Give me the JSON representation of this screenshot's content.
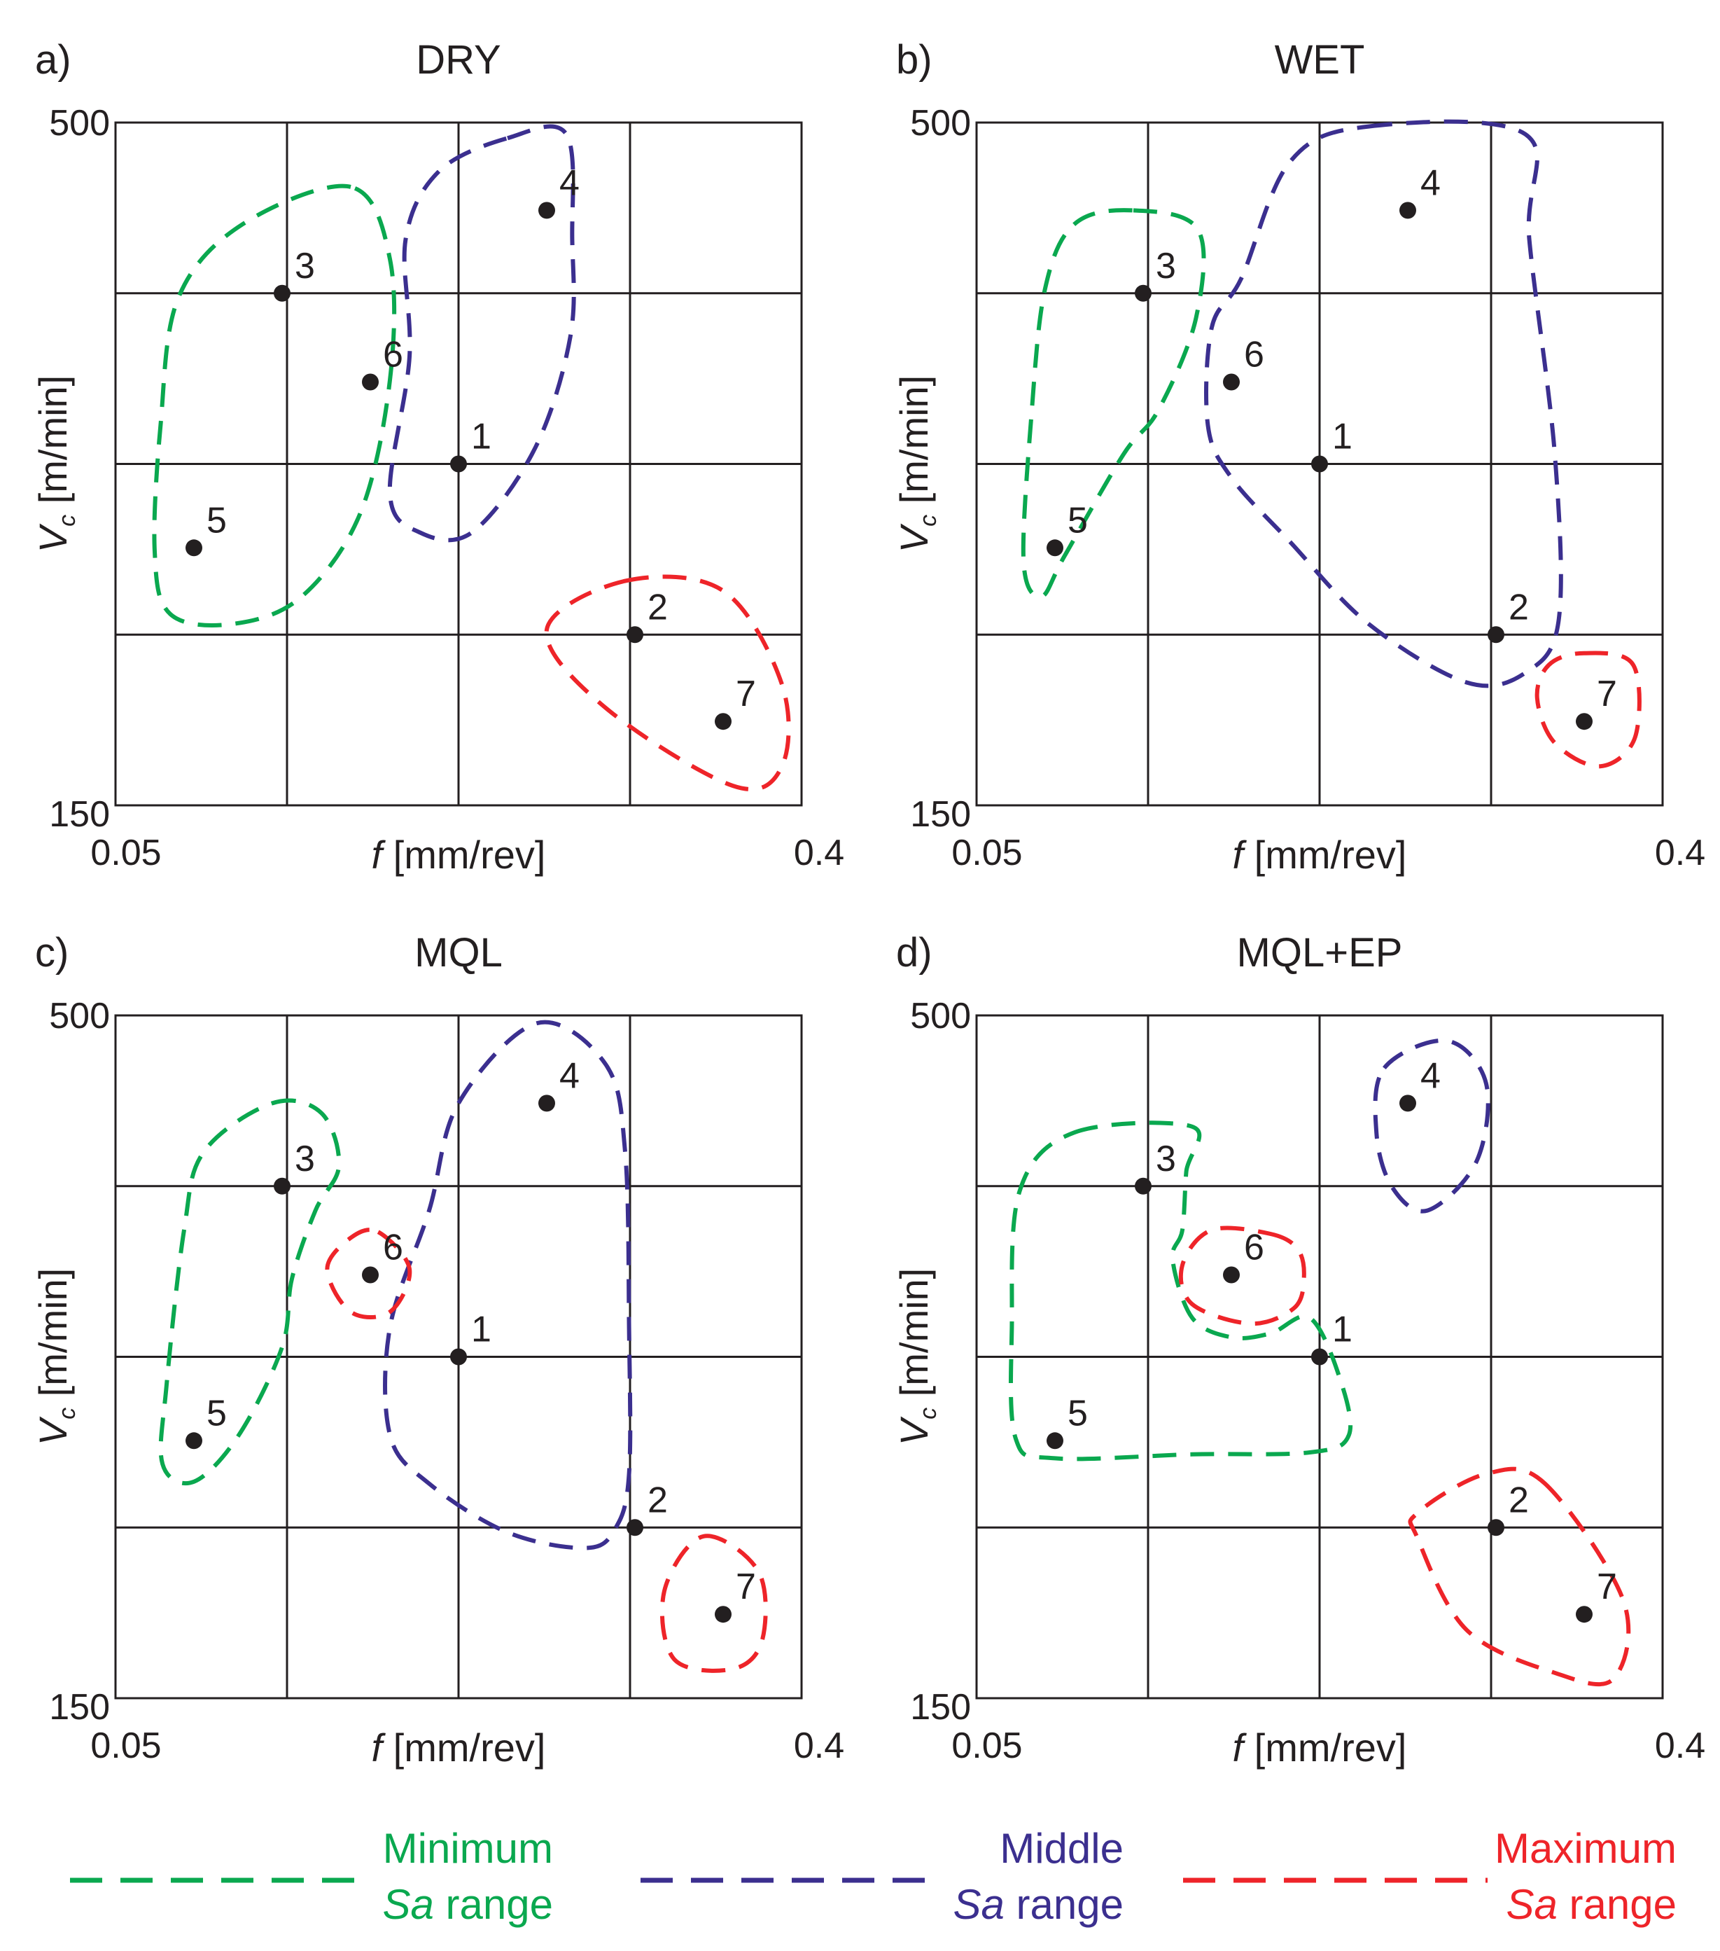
{
  "colors": {
    "minimum": "#0aa84f",
    "middle": "#3b2f8f",
    "maximum": "#ee2429",
    "grid": "#231f20",
    "point": "#231f20"
  },
  "axes": {
    "x_label_var": "f",
    "x_label_unit": " [mm/rev]",
    "x_min_label": "0.05",
    "x_max_label": "0.4",
    "y_label_var": "V",
    "y_label_sub": "c",
    "y_label_unit": " [m/min]",
    "y_min_label": "150",
    "y_max_label": "500"
  },
  "chart_data": {
    "type": "scatter",
    "x_range": [
      0.05,
      0.4
    ],
    "y_range": [
      150,
      500
    ],
    "points": [
      {
        "id": "1",
        "f": 0.225,
        "vc": 325
      },
      {
        "id": "2",
        "f": 0.315,
        "vc": 237.5
      },
      {
        "id": "3",
        "f": 0.135,
        "vc": 412.5
      },
      {
        "id": "4",
        "f": 0.27,
        "vc": 455
      },
      {
        "id": "5",
        "f": 0.09,
        "vc": 282
      },
      {
        "id": "6",
        "f": 0.18,
        "vc": 367
      },
      {
        "id": "7",
        "f": 0.36,
        "vc": 193
      }
    ],
    "panels": [
      {
        "letter": "a)",
        "title": "DRY",
        "groups": {
          "minimum": [
            "3",
            "5",
            "6"
          ],
          "middle": [
            "1",
            "4"
          ],
          "maximum": [
            "2",
            "7"
          ]
        }
      },
      {
        "letter": "b)",
        "title": "WET",
        "groups": {
          "minimum": [
            "3",
            "5"
          ],
          "middle": [
            "1",
            "2",
            "4",
            "6"
          ],
          "maximum": [
            "7"
          ]
        }
      },
      {
        "letter": "c)",
        "title": "MQL",
        "groups": {
          "minimum": [
            "3",
            "5"
          ],
          "middle": [
            "1",
            "2",
            "4"
          ],
          "maximum": [
            "6",
            "7"
          ]
        }
      },
      {
        "letter": "d)",
        "title": "MQL+EP",
        "groups": {
          "minimum": [
            "1",
            "3",
            "5"
          ],
          "middle": [
            "4"
          ],
          "maximum": [
            "2",
            "6",
            "7"
          ]
        }
      }
    ]
  },
  "legend": [
    {
      "key": "minimum",
      "line1": "Minimum",
      "line2_ital": "Sa",
      "line2_rest": " range"
    },
    {
      "key": "middle",
      "line1": "Middle",
      "line2_ital": "Sa",
      "line2_rest": " range"
    },
    {
      "key": "maximum",
      "line1": "Maximum",
      "line2_ital": "Sa",
      "line2_rest": " range"
    }
  ]
}
